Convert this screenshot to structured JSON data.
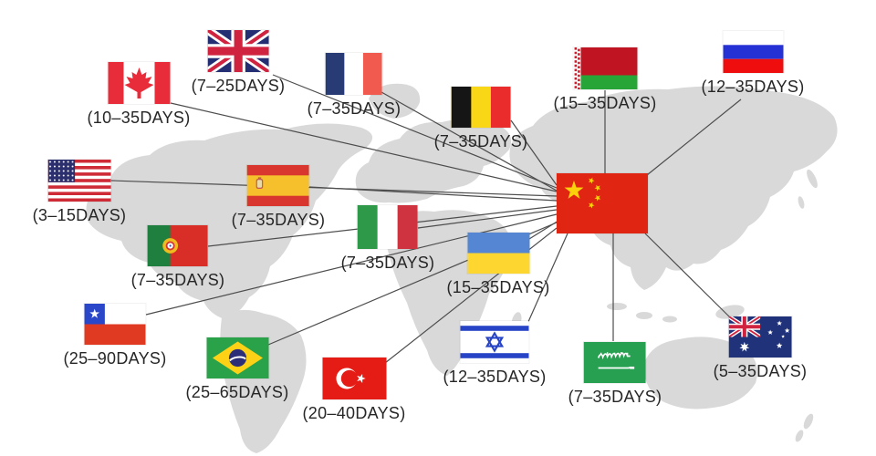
{
  "title": "worldwide-shipping-times-map",
  "style": {
    "land_color": "#d9d9d9",
    "route_line_color": "#4d4d4d",
    "label_text_color": "#262626",
    "origin_flag_red": "#e02613"
  },
  "origin": {
    "country": "China",
    "flag_icon": "china-flag"
  },
  "destinations": [
    {
      "country": "Canada",
      "flag_icon": "canada-flag",
      "label": "(10–35DAYS)"
    },
    {
      "country": "United Kingdom",
      "flag_icon": "uk-flag",
      "label": "(7–25DAYS)"
    },
    {
      "country": "France",
      "flag_icon": "france-flag",
      "label": "(7–35DAYS)"
    },
    {
      "country": "Belgium",
      "flag_icon": "belgium-flag",
      "label": "(7–35DAYS)"
    },
    {
      "country": "Belarus",
      "flag_icon": "belarus-flag",
      "label": "(15–35DAYS)"
    },
    {
      "country": "Russia",
      "flag_icon": "russia-flag",
      "label": "(12–35DAYS)"
    },
    {
      "country": "United States",
      "flag_icon": "usa-flag",
      "label": "(3–15DAYS)"
    },
    {
      "country": "Spain",
      "flag_icon": "spain-flag",
      "label": "(7–35DAYS)"
    },
    {
      "country": "Portugal",
      "flag_icon": "portugal-flag",
      "label": "(7–35DAYS)"
    },
    {
      "country": "Italy",
      "flag_icon": "italy-flag",
      "label": "(7–35DAYS)"
    },
    {
      "country": "Ukraine",
      "flag_icon": "ukraine-flag",
      "label": "(15–35DAYS)"
    },
    {
      "country": "Chile",
      "flag_icon": "chile-flag",
      "label": "(25–90DAYS)"
    },
    {
      "country": "Brazil",
      "flag_icon": "brazil-flag",
      "label": "(25–65DAYS)"
    },
    {
      "country": "Turkey",
      "flag_icon": "turkey-flag",
      "label": "(20–40DAYS)"
    },
    {
      "country": "Israel",
      "flag_icon": "israel-flag",
      "label": "(12–35DAYS)"
    },
    {
      "country": "Saudi Arabia",
      "flag_icon": "saudi-arabia-flag",
      "label": "(7–35DAYS)"
    },
    {
      "country": "Australia",
      "flag_icon": "australia-flag",
      "label": "(5–35DAYS)"
    }
  ]
}
